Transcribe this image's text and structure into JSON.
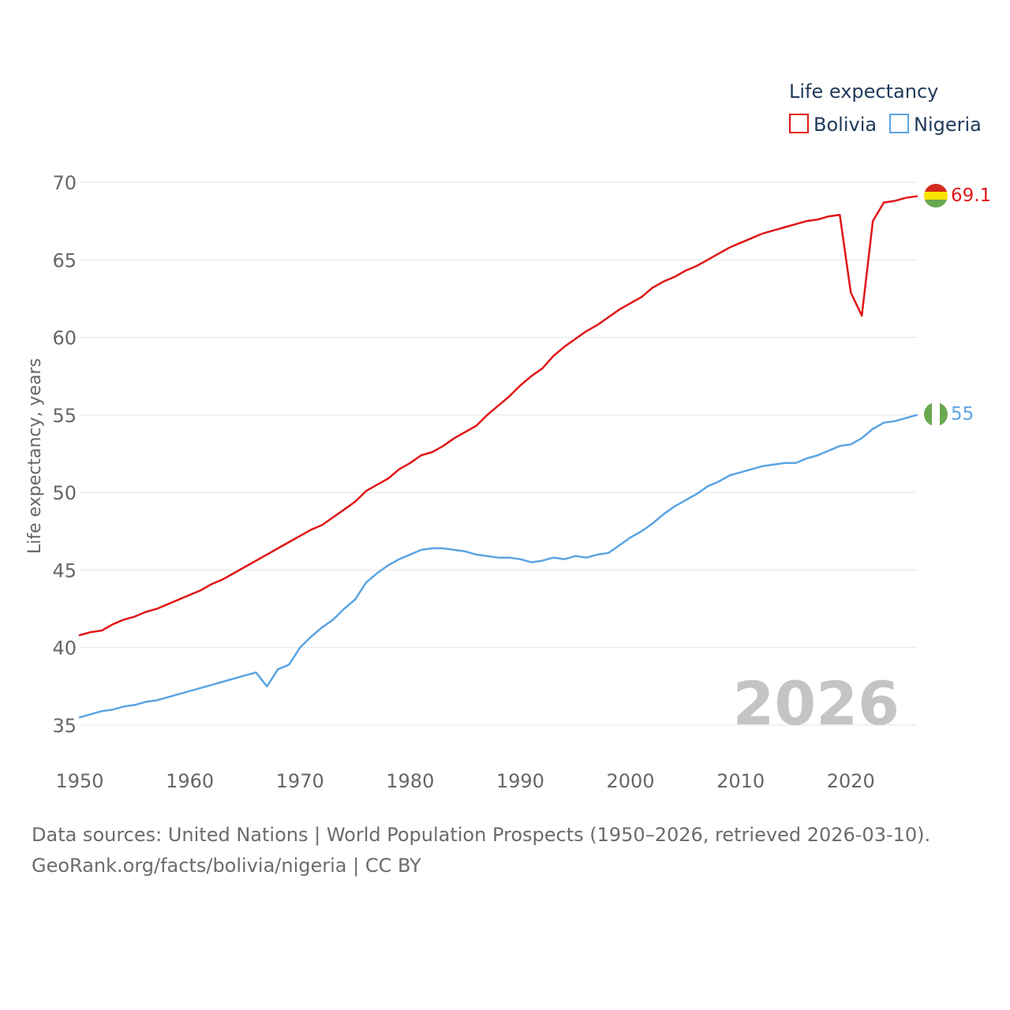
{
  "chart_data": {
    "type": "line",
    "title": "",
    "xlabel": "",
    "ylabel": "Life expectancy, years",
    "xlim": [
      1950,
      2026
    ],
    "ylim": [
      35,
      70
    ],
    "x_ticks": [
      "1950",
      "1960",
      "1970",
      "1980",
      "1990",
      "2000",
      "2010",
      "2020"
    ],
    "y_ticks": [
      "35",
      "40",
      "45",
      "50",
      "55",
      "60",
      "65",
      "70"
    ],
    "grid": true,
    "legend": {
      "title": "Life expectancy",
      "position": "top-right"
    },
    "year_label": "2026",
    "x": [
      1950,
      1951,
      1952,
      1953,
      1954,
      1955,
      1956,
      1957,
      1958,
      1959,
      1960,
      1961,
      1962,
      1963,
      1964,
      1965,
      1966,
      1967,
      1968,
      1969,
      1970,
      1971,
      1972,
      1973,
      1974,
      1975,
      1976,
      1977,
      1978,
      1979,
      1980,
      1981,
      1982,
      1983,
      1984,
      1985,
      1986,
      1987,
      1988,
      1989,
      1990,
      1991,
      1992,
      1993,
      1994,
      1995,
      1996,
      1997,
      1998,
      1999,
      2000,
      2001,
      2002,
      2003,
      2004,
      2005,
      2006,
      2007,
      2008,
      2009,
      2010,
      2011,
      2012,
      2013,
      2014,
      2015,
      2016,
      2017,
      2018,
      2019,
      2020,
      2021,
      2022,
      2023,
      2024,
      2025,
      2026
    ],
    "series": [
      {
        "name": "Bolivia",
        "color": "#e01616",
        "end_label": "69.1",
        "flag": "bolivia",
        "values": [
          40.8,
          41.0,
          41.1,
          41.5,
          41.8,
          42.0,
          42.3,
          42.5,
          42.8,
          43.1,
          43.4,
          43.7,
          44.1,
          44.4,
          44.8,
          45.2,
          45.6,
          46.0,
          46.4,
          46.8,
          47.2,
          47.6,
          47.9,
          48.4,
          48.9,
          49.4,
          50.1,
          50.5,
          50.9,
          51.5,
          51.9,
          52.4,
          52.6,
          53.0,
          53.5,
          53.9,
          54.3,
          55.0,
          55.6,
          56.2,
          56.9,
          57.5,
          58.0,
          58.8,
          59.4,
          59.9,
          60.4,
          60.8,
          61.3,
          61.8,
          62.2,
          62.6,
          63.2,
          63.6,
          63.9,
          64.3,
          64.6,
          65.0,
          65.4,
          65.8,
          66.1,
          66.4,
          66.7,
          66.9,
          67.1,
          67.3,
          67.5,
          67.6,
          67.8,
          67.9,
          62.9,
          61.4,
          67.5,
          68.7,
          68.8,
          69.0,
          69.1
        ]
      },
      {
        "name": "Nigeria",
        "color": "#5ba4e3",
        "end_label": "55",
        "flag": "nigeria",
        "values": [
          35.5,
          35.7,
          35.9,
          36.0,
          36.2,
          36.3,
          36.5,
          36.6,
          36.8,
          37.0,
          37.2,
          37.4,
          37.6,
          37.8,
          38.0,
          38.2,
          38.4,
          37.5,
          38.6,
          38.9,
          40.0,
          40.7,
          41.3,
          41.8,
          42.5,
          43.1,
          44.2,
          44.8,
          45.3,
          45.7,
          46.0,
          46.3,
          46.4,
          46.4,
          46.3,
          46.2,
          46.0,
          45.9,
          45.8,
          45.8,
          45.7,
          45.5,
          45.6,
          45.8,
          45.7,
          45.9,
          45.8,
          46.0,
          46.1,
          46.6,
          47.1,
          47.5,
          48.0,
          48.6,
          49.1,
          49.5,
          49.9,
          50.4,
          50.7,
          51.1,
          51.3,
          51.5,
          51.7,
          51.8,
          51.9,
          51.9,
          52.2,
          52.4,
          52.7,
          53.0,
          53.1,
          53.5,
          54.1,
          54.5,
          54.6,
          54.8,
          55.0
        ]
      }
    ]
  },
  "footer": {
    "source": "Data sources: United Nations | World Population Prospects (1950–2026, retrieved 2026-03-10).",
    "link": "GeoRank.org/facts/bolivia/nigeria | CC BY"
  }
}
